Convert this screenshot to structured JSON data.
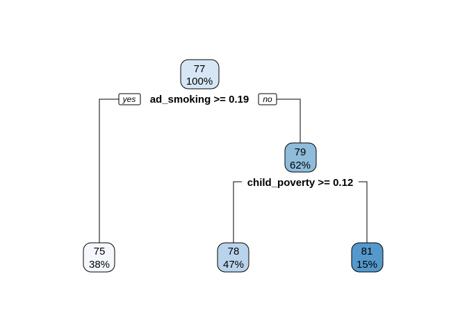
{
  "tree": {
    "nodes": [
      {
        "id": "root",
        "value": "77",
        "percent": "100%",
        "color": "#d6e6f5"
      },
      {
        "id": "n2",
        "value": "79",
        "percent": "62%",
        "color": "#8fbcdb"
      },
      {
        "id": "leaf1",
        "value": "75",
        "percent": "38%",
        "color": "#f4f8fd"
      },
      {
        "id": "leaf2",
        "value": "78",
        "percent": "47%",
        "color": "#bad3ec"
      },
      {
        "id": "leaf3",
        "value": "81",
        "percent": "15%",
        "color": "#5599cc"
      }
    ],
    "splits": [
      {
        "id": "split1",
        "label": "ad_smoking >= 0.19",
        "yes_label": "yes",
        "no_label": "no"
      },
      {
        "id": "split2",
        "label": "child_poverty >= 0.12"
      }
    ]
  }
}
